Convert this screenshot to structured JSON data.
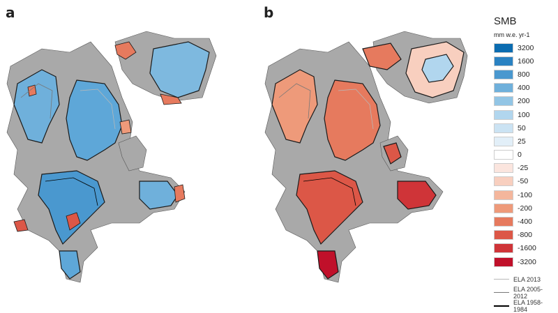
{
  "panels": [
    {
      "label": "a"
    },
    {
      "label": "b"
    }
  ],
  "legend": {
    "title": "SMB",
    "unit": "mm w.e. yr-1",
    "items": [
      {
        "label": "3200",
        "color": "#0b6cb0"
      },
      {
        "label": "1600",
        "color": "#2a82c2"
      },
      {
        "label": "800",
        "color": "#4a98cf"
      },
      {
        "label": "400",
        "color": "#6fb0db"
      },
      {
        "label": "200",
        "color": "#92c5e5"
      },
      {
        "label": "100",
        "color": "#b1d6ee"
      },
      {
        "label": "50",
        "color": "#cbe3f3"
      },
      {
        "label": "25",
        "color": "#e2eff8"
      },
      {
        "label": "0",
        "color": "#ffffff"
      },
      {
        "label": "-25",
        "color": "#fbe5de"
      },
      {
        "label": "-50",
        "color": "#f8cfbf"
      },
      {
        "label": "-100",
        "color": "#f4b69c"
      },
      {
        "label": "-200",
        "color": "#ee9a7a"
      },
      {
        "label": "-400",
        "color": "#e67a5e"
      },
      {
        "label": "-800",
        "color": "#dc5747"
      },
      {
        "label": "-1600",
        "color": "#cf3438"
      },
      {
        "label": "-3200",
        "color": "#c0102a"
      }
    ],
    "ela": [
      {
        "label": "ELA 2013",
        "color": "#b8b8b8"
      },
      {
        "label": "ELA 2005-2012",
        "color": "#777777"
      },
      {
        "label": "ELA 1958-1984",
        "color": "#000000"
      }
    ]
  }
}
